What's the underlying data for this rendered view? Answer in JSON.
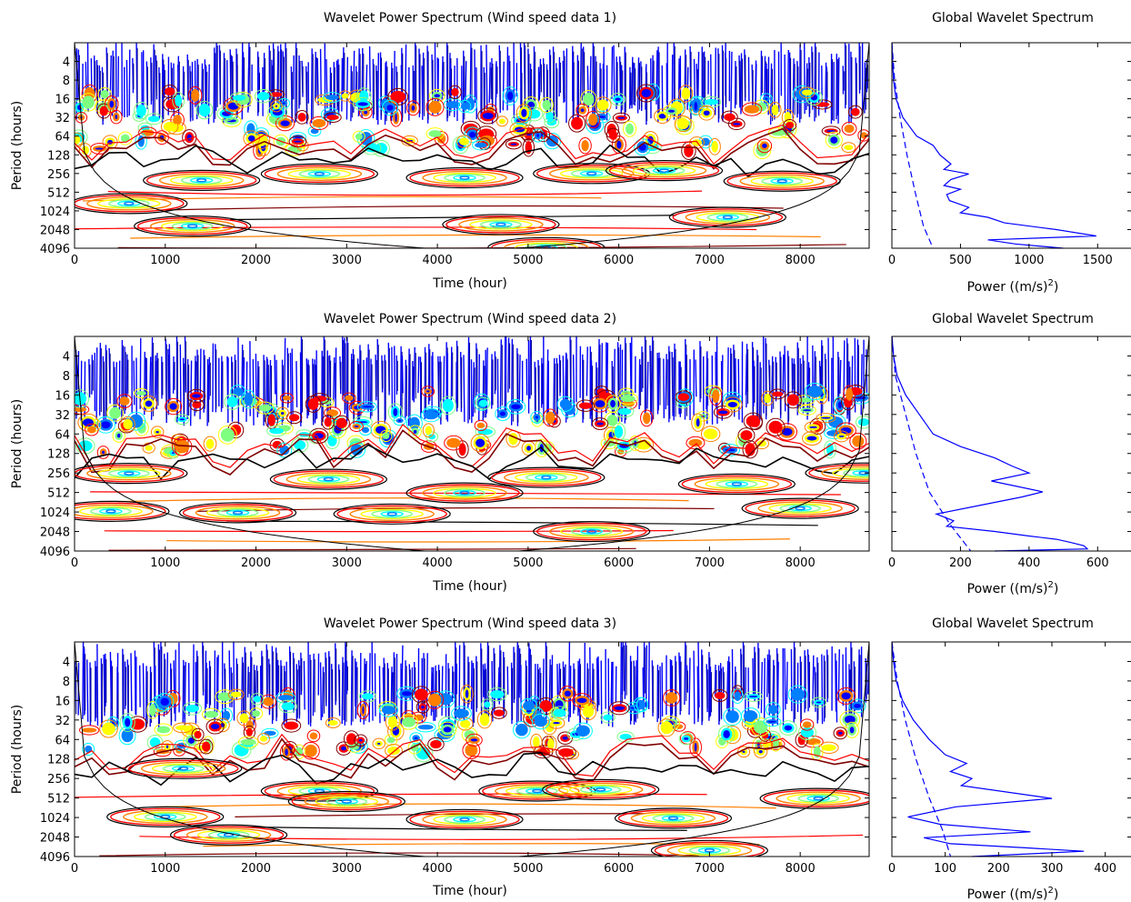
{
  "figure": {
    "background": "#ffffff"
  },
  "chart_data": [
    {
      "id": "wps1",
      "type": "heatmap",
      "title": "Wavelet Power Spectrum (Wind speed data 1)",
      "xlabel": "Time (hour)",
      "ylabel": "Period (hours)",
      "xlim": [
        0,
        8760
      ],
      "xticks": [
        0,
        1000,
        2000,
        3000,
        4000,
        5000,
        6000,
        7000,
        8000
      ],
      "ylim": [
        2,
        4096
      ],
      "yscale": "log2",
      "yreversed": true,
      "yticks": [
        4,
        8,
        16,
        32,
        64,
        128,
        256,
        512,
        1024,
        2048,
        4096
      ],
      "grid": false,
      "colormap": [
        "#00008b",
        "#0000ff",
        "#007fff",
        "#00ffff",
        "#7fff7f",
        "#ffff00",
        "#ff7f00",
        "#ff0000",
        "#7f0000",
        "#000000"
      ],
      "cone_of_influence": true,
      "band_levels": {
        "blue": 2,
        "cyan": 12,
        "warm": 70,
        "ridge": 150
      },
      "hotspots": [
        {
          "t": 1300,
          "p": 1800
        },
        {
          "t": 4700,
          "p": 1700
        },
        {
          "t": 7200,
          "p": 1300
        },
        {
          "t": 600,
          "p": 780
        },
        {
          "t": 4300,
          "p": 300
        },
        {
          "t": 5700,
          "p": 256
        },
        {
          "t": 2700,
          "p": 260
        },
        {
          "t": 7800,
          "p": 340
        },
        {
          "t": 1400,
          "p": 330
        },
        {
          "t": 6500,
          "p": 230
        },
        {
          "t": 5200,
          "p": 4000
        }
      ]
    },
    {
      "id": "gws1",
      "type": "line",
      "title": "Global Wavelet Spectrum",
      "xlabel": "Power ((m/s)",
      "xlabel_sup": "2",
      "xlabel_end": ")",
      "xlim": [
        0,
        1750
      ],
      "xticks": [
        0,
        500,
        1000,
        1500
      ],
      "ylim": [
        2,
        4096
      ],
      "yscale": "log2",
      "yreversed": true,
      "series": [
        {
          "style": "solid",
          "color": "#0000ff",
          "points": [
            [
              0,
              2
            ],
            [
              5,
              4
            ],
            [
              12,
              8
            ],
            [
              30,
              16
            ],
            [
              80,
              32
            ],
            [
              180,
              64
            ],
            [
              300,
              90
            ],
            [
              350,
              128
            ],
            [
              430,
              180
            ],
            [
              380,
              220
            ],
            [
              560,
              260
            ],
            [
              430,
              320
            ],
            [
              380,
              400
            ],
            [
              500,
              460
            ],
            [
              400,
              560
            ],
            [
              420,
              700
            ],
            [
              560,
              900
            ],
            [
              500,
              1100
            ],
            [
              700,
              1300
            ],
            [
              820,
              1600
            ],
            [
              1200,
              2048
            ],
            [
              1490,
              2600
            ],
            [
              700,
              3000
            ],
            [
              900,
              3500
            ],
            [
              1250,
              4096
            ]
          ]
        },
        {
          "style": "dashed",
          "color": "#0000ff",
          "points": [
            [
              0,
              2
            ],
            [
              20,
              8
            ],
            [
              60,
              32
            ],
            [
              110,
              128
            ],
            [
              170,
              512
            ],
            [
              230,
              1800
            ],
            [
              300,
              4096
            ]
          ]
        }
      ]
    },
    {
      "id": "wps2",
      "type": "heatmap",
      "title": "Wavelet Power Spectrum (Wind speed data 2)",
      "xlabel": "Time (hour)",
      "ylabel": "Period (hours)",
      "xlim": [
        0,
        8760
      ],
      "xticks": [
        0,
        1000,
        2000,
        3000,
        4000,
        5000,
        6000,
        7000,
        8000
      ],
      "ylim": [
        2,
        4096
      ],
      "yscale": "log2",
      "yreversed": true,
      "yticks": [
        4,
        8,
        16,
        32,
        64,
        128,
        256,
        512,
        1024,
        2048,
        4096
      ],
      "grid": false,
      "colormap": [
        "#00008b",
        "#0000ff",
        "#007fff",
        "#00ffff",
        "#7fff7f",
        "#ffff00",
        "#ff7f00",
        "#ff0000",
        "#7f0000",
        "#000000"
      ],
      "cone_of_influence": true,
      "band_levels": {
        "blue": 2,
        "cyan": 14,
        "warm": 80,
        "ridge": 160
      },
      "hotspots": [
        {
          "t": 400,
          "p": 1000
        },
        {
          "t": 1800,
          "p": 1050
        },
        {
          "t": 3500,
          "p": 1100
        },
        {
          "t": 5700,
          "p": 2048
        },
        {
          "t": 4300,
          "p": 520
        },
        {
          "t": 5200,
          "p": 300
        },
        {
          "t": 7300,
          "p": 380
        },
        {
          "t": 600,
          "p": 260
        },
        {
          "t": 8700,
          "p": 256
        },
        {
          "t": 2800,
          "p": 320
        },
        {
          "t": 8000,
          "p": 900
        }
      ]
    },
    {
      "id": "gws2",
      "type": "line",
      "title": "Global Wavelet Spectrum",
      "xlabel": "Power ((m/s)",
      "xlabel_sup": "2",
      "xlabel_end": ")",
      "xlim": [
        0,
        700
      ],
      "xticks": [
        0,
        200,
        400,
        600
      ],
      "ylim": [
        2,
        4096
      ],
      "yscale": "log2",
      "yreversed": true,
      "series": [
        {
          "style": "solid",
          "color": "#0000ff",
          "points": [
            [
              0,
              2
            ],
            [
              5,
              4
            ],
            [
              15,
              8
            ],
            [
              40,
              16
            ],
            [
              80,
              32
            ],
            [
              120,
              64
            ],
            [
              200,
              100
            ],
            [
              300,
              150
            ],
            [
              350,
              200
            ],
            [
              400,
              256
            ],
            [
              290,
              340
            ],
            [
              440,
              500
            ],
            [
              380,
              600
            ],
            [
              260,
              800
            ],
            [
              130,
              1100
            ],
            [
              180,
              1400
            ],
            [
              160,
              1700
            ],
            [
              300,
              2048
            ],
            [
              400,
              2400
            ],
            [
              480,
              2700
            ],
            [
              520,
              3000
            ],
            [
              560,
              3400
            ],
            [
              570,
              3800
            ],
            [
              300,
              4096
            ]
          ]
        },
        {
          "style": "dashed",
          "color": "#0000ff",
          "points": [
            [
              0,
              2
            ],
            [
              10,
              8
            ],
            [
              40,
              32
            ],
            [
              70,
              128
            ],
            [
              110,
              512
            ],
            [
              170,
              1600
            ],
            [
              230,
              4096
            ]
          ]
        }
      ]
    },
    {
      "id": "wps3",
      "type": "heatmap",
      "title": "Wavelet Power Spectrum (Wind speed data 3)",
      "xlabel": "Time (hour)",
      "ylabel": "Period (hours)",
      "xlim": [
        0,
        8760
      ],
      "xticks": [
        0,
        1000,
        2000,
        3000,
        4000,
        5000,
        6000,
        7000,
        8000
      ],
      "ylim": [
        2,
        4096
      ],
      "yscale": "log2",
      "yreversed": true,
      "yticks": [
        4,
        8,
        16,
        32,
        64,
        128,
        256,
        512,
        1024,
        2048,
        4096
      ],
      "grid": false,
      "colormap": [
        "#00008b",
        "#0000ff",
        "#007fff",
        "#00ffff",
        "#7fff7f",
        "#ffff00",
        "#ff7f00",
        "#ff0000",
        "#7f0000",
        "#000000"
      ],
      "cone_of_influence": true,
      "band_levels": {
        "blue": 2,
        "cyan": 12,
        "warm": 90,
        "ridge": 170
      },
      "hotspots": [
        {
          "t": 1000,
          "p": 1000
        },
        {
          "t": 1700,
          "p": 1900
        },
        {
          "t": 4300,
          "p": 1100
        },
        {
          "t": 6600,
          "p": 1050
        },
        {
          "t": 7000,
          "p": 3300
        },
        {
          "t": 2700,
          "p": 400
        },
        {
          "t": 3000,
          "p": 580
        },
        {
          "t": 5100,
          "p": 400
        },
        {
          "t": 5800,
          "p": 380
        },
        {
          "t": 1200,
          "p": 180
        },
        {
          "t": 8200,
          "p": 520
        }
      ]
    },
    {
      "id": "gws3",
      "type": "line",
      "title": "Global Wavelet Spectrum",
      "xlabel": "Power ((m/s)",
      "xlabel_sup": "2",
      "xlabel_end": ")",
      "xlim": [
        0,
        450
      ],
      "xticks": [
        0,
        100,
        200,
        300,
        400
      ],
      "ylim": [
        2,
        4096
      ],
      "yscale": "log2",
      "yreversed": true,
      "series": [
        {
          "style": "solid",
          "color": "#0000ff",
          "points": [
            [
              0,
              2
            ],
            [
              3,
              4
            ],
            [
              8,
              8
            ],
            [
              20,
              16
            ],
            [
              40,
              32
            ],
            [
              70,
              64
            ],
            [
              100,
              110
            ],
            [
              140,
              150
            ],
            [
              110,
              200
            ],
            [
              150,
              256
            ],
            [
              130,
              330
            ],
            [
              300,
              520
            ],
            [
              120,
              700
            ],
            [
              30,
              1000
            ],
            [
              90,
              1300
            ],
            [
              260,
              1700
            ],
            [
              60,
              2100
            ],
            [
              110,
              2600
            ],
            [
              250,
              3000
            ],
            [
              360,
              3400
            ],
            [
              150,
              4096
            ]
          ]
        },
        {
          "style": "dashed",
          "color": "#0000ff",
          "points": [
            [
              0,
              2
            ],
            [
              10,
              8
            ],
            [
              25,
              32
            ],
            [
              45,
              128
            ],
            [
              70,
              512
            ],
            [
              95,
              1600
            ],
            [
              110,
              4096
            ]
          ]
        }
      ]
    }
  ]
}
